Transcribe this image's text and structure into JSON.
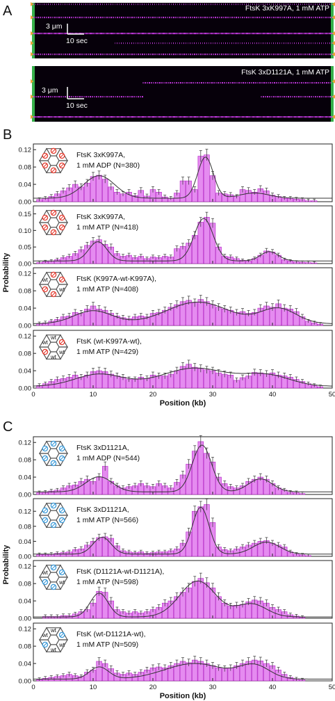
{
  "panel_labels": {
    "a": "A",
    "b": "B",
    "c": "C"
  },
  "kymographs": [
    {
      "label": "FtsK 3xK997A, 1 mM ATP",
      "scale_y": "3 μm",
      "scale_x": "10 sec"
    },
    {
      "label": "FtsK 3xD1121A, 1 mM ATP",
      "scale_y": "3 μm",
      "scale_x": "10 sec"
    }
  ],
  "colors": {
    "bar_fill": "#e58bf0",
    "bar_edge": "#b21fc4",
    "hex_ring_red": "#e53a2e",
    "hex_ring_blue": "#3a9ad9",
    "fit_line": "#333333",
    "kymo_bg": "#06000a",
    "kymo_track": "#c93ae6",
    "kymo_edge": "#36b04a"
  },
  "chart_data": [
    {
      "type": "bar",
      "group": "B",
      "legend_line1": "FtsK 3xK997A,",
      "legend_line2": "1 mM ADP (N=380)",
      "hexamer": [
        "m",
        "m",
        "m",
        "m",
        "m",
        "m"
      ],
      "mark": "red",
      "xlim": [
        0,
        50
      ],
      "ylim": [
        0,
        0.13
      ],
      "yticks": [
        0.0,
        0.04,
        0.08,
        0.12
      ],
      "ytick_labels": [
        "0.00",
        "0.04",
        "0.08",
        "0.12"
      ],
      "x_tick_labels_shown": false,
      "bin_width_kb": 1.05,
      "x": [
        1,
        2,
        3,
        4,
        5,
        6,
        7,
        8,
        9,
        10,
        11,
        12,
        13,
        14,
        15,
        16,
        17,
        18,
        19,
        20,
        21,
        22,
        23,
        24,
        25,
        26,
        27,
        28,
        29,
        30,
        31,
        32,
        33,
        34,
        35,
        36,
        37,
        38,
        39,
        40,
        41,
        42,
        43,
        44,
        45,
        46,
        47,
        48,
        49
      ],
      "values": [
        0.005,
        0.008,
        0.012,
        0.018,
        0.025,
        0.032,
        0.04,
        0.034,
        0.043,
        0.058,
        0.061,
        0.052,
        0.034,
        0.022,
        0.018,
        0.022,
        0.014,
        0.026,
        0.013,
        0.028,
        0.022,
        0.011,
        0.008,
        0.02,
        0.048,
        0.048,
        0.028,
        0.105,
        0.108,
        0.06,
        0.02,
        0.018,
        0.016,
        0.012,
        0.028,
        0.026,
        0.022,
        0.03,
        0.025,
        0.015,
        0.012,
        0.008,
        0.008,
        0.006,
        0.005,
        0.002,
        0.002,
        0,
        0
      ],
      "fit": {
        "baseline": 0.008,
        "peaks": [
          {
            "mu": 11,
            "sigma": 2.6,
            "amp": 0.052
          },
          {
            "mu": 28.8,
            "sigma": 1.3,
            "amp": 0.095
          },
          {
            "mu": 37,
            "sigma": 2.5,
            "amp": 0.012
          }
        ]
      }
    },
    {
      "type": "bar",
      "group": "B",
      "legend_line1": "FtsK 3xK997A,",
      "legend_line2": "1 mM ATP (N=418)",
      "hexamer": [
        "m",
        "m",
        "m",
        "m",
        "m",
        "m"
      ],
      "mark": "red",
      "xlim": [
        0,
        50
      ],
      "ylim": [
        0,
        0.17
      ],
      "yticks": [
        0.0,
        0.05,
        0.1,
        0.15
      ],
      "ytick_labels": [
        "0.00",
        "0.05",
        "0.10",
        "0.15"
      ],
      "x_tick_labels_shown": false,
      "bin_width_kb": 1.05,
      "x": [
        1,
        2,
        3,
        4,
        5,
        6,
        7,
        8,
        9,
        10,
        11,
        12,
        13,
        14,
        15,
        16,
        17,
        18,
        19,
        20,
        21,
        22,
        23,
        24,
        25,
        26,
        27,
        28,
        29,
        30,
        31,
        32,
        33,
        34,
        35,
        36,
        37,
        38,
        39,
        40,
        41,
        42,
        43,
        44,
        45,
        46,
        47,
        48,
        49
      ],
      "values": [
        0.003,
        0.006,
        0.008,
        0.012,
        0.018,
        0.022,
        0.03,
        0.042,
        0.055,
        0.068,
        0.072,
        0.058,
        0.05,
        0.03,
        0.022,
        0.025,
        0.018,
        0.022,
        0.015,
        0.02,
        0.018,
        0.022,
        0.02,
        0.045,
        0.052,
        0.062,
        0.085,
        0.125,
        0.14,
        0.122,
        0.05,
        0.022,
        0.02,
        0.015,
        0.01,
        0.008,
        0.015,
        0.025,
        0.038,
        0.035,
        0.025,
        0.012,
        0.008,
        0.005,
        0.004,
        0.003,
        0.002,
        0,
        0
      ],
      "fit": {
        "baseline": 0.008,
        "peaks": [
          {
            "mu": 10.8,
            "sigma": 1.5,
            "amp": 0.058
          },
          {
            "mu": 28.5,
            "sigma": 1.6,
            "amp": 0.128
          },
          {
            "mu": 39.5,
            "sigma": 1.5,
            "amp": 0.028
          }
        ]
      }
    },
    {
      "type": "bar",
      "group": "B",
      "legend_line1": "FtsK (K997A-wt-K997A),",
      "legend_line2": "1 mM ATP (N=408)",
      "hexamer": [
        "m",
        "m",
        "wt",
        "m",
        "m",
        "wt"
      ],
      "mark": "red",
      "xlim": [
        0,
        50
      ],
      "ylim": [
        0,
        0.13
      ],
      "yticks": [
        0.0,
        0.04,
        0.08,
        0.12
      ],
      "ytick_labels": [
        "0.00",
        "0.04",
        "0.08",
        "0.12"
      ],
      "x_tick_labels_shown": false,
      "bin_width_kb": 1.05,
      "x": [
        1,
        2,
        3,
        4,
        5,
        6,
        7,
        8,
        9,
        10,
        11,
        12,
        13,
        14,
        15,
        16,
        17,
        18,
        19,
        20,
        21,
        22,
        23,
        24,
        25,
        26,
        27,
        28,
        29,
        30,
        31,
        32,
        33,
        34,
        35,
        36,
        37,
        38,
        39,
        40,
        41,
        42,
        43,
        44,
        45,
        46,
        47,
        48,
        49
      ],
      "values": [
        0.004,
        0.006,
        0.01,
        0.014,
        0.02,
        0.022,
        0.03,
        0.028,
        0.038,
        0.045,
        0.038,
        0.035,
        0.028,
        0.022,
        0.018,
        0.016,
        0.02,
        0.022,
        0.02,
        0.028,
        0.03,
        0.035,
        0.042,
        0.048,
        0.055,
        0.058,
        0.052,
        0.06,
        0.055,
        0.048,
        0.042,
        0.038,
        0.035,
        0.03,
        0.032,
        0.028,
        0.03,
        0.04,
        0.045,
        0.042,
        0.05,
        0.04,
        0.038,
        0.032,
        0.02,
        0.01,
        0.006,
        0.003,
        0
      ],
      "fit": {
        "baseline": 0.004,
        "peaks": [
          {
            "mu": 10,
            "sigma": 3.2,
            "amp": 0.03
          },
          {
            "mu": 27.5,
            "sigma": 5.2,
            "amp": 0.05
          },
          {
            "mu": 41,
            "sigma": 3.0,
            "amp": 0.035
          }
        ]
      }
    },
    {
      "type": "bar",
      "group": "B",
      "legend_line1": "FtsK (wt-K997A-wt),",
      "legend_line2": "1 mM ATP (N=429)",
      "hexamer": [
        "wt",
        "m",
        "wt",
        "wt",
        "m",
        "wt"
      ],
      "mark": "red",
      "xlim": [
        0,
        50
      ],
      "ylim": [
        0,
        0.13
      ],
      "yticks": [
        0.0,
        0.04,
        0.08,
        0.12
      ],
      "ytick_labels": [
        "0.00",
        "0.04",
        "0.08",
        "0.12"
      ],
      "x_tick_labels_shown": true,
      "xticks": [
        0,
        10,
        20,
        30,
        40,
        50
      ],
      "xtick_labels": [
        "0",
        "10",
        "20",
        "30",
        "40",
        "50"
      ],
      "xlabel": "Position (kb)",
      "bin_width_kb": 1.05,
      "x": [
        1,
        2,
        3,
        4,
        5,
        6,
        7,
        8,
        9,
        10,
        11,
        12,
        13,
        14,
        15,
        16,
        17,
        18,
        19,
        20,
        21,
        22,
        23,
        24,
        25,
        26,
        27,
        28,
        29,
        30,
        31,
        32,
        33,
        34,
        35,
        36,
        37,
        38,
        39,
        40,
        41,
        42,
        43,
        44,
        45,
        46,
        47,
        48,
        49
      ],
      "values": [
        0.006,
        0.01,
        0.015,
        0.02,
        0.022,
        0.025,
        0.03,
        0.025,
        0.03,
        0.038,
        0.04,
        0.038,
        0.032,
        0.028,
        0.025,
        0.02,
        0.02,
        0.025,
        0.022,
        0.03,
        0.028,
        0.028,
        0.032,
        0.04,
        0.05,
        0.055,
        0.048,
        0.045,
        0.042,
        0.04,
        0.035,
        0.032,
        0.03,
        0.018,
        0.024,
        0.028,
        0.036,
        0.035,
        0.033,
        0.035,
        0.03,
        0.028,
        0.025,
        0.02,
        0.015,
        0.01,
        0.006,
        0.003,
        0
      ],
      "fit": {
        "baseline": 0.004,
        "peaks": [
          {
            "mu": 11,
            "sigma": 4.0,
            "amp": 0.028
          },
          {
            "mu": 27,
            "sigma": 5.5,
            "amp": 0.042
          },
          {
            "mu": 39,
            "sigma": 4.0,
            "amp": 0.025
          }
        ]
      }
    },
    {
      "type": "bar",
      "group": "C",
      "legend_line1": "FtsK 3xD1121A,",
      "legend_line2": "1 mM ADP (N=544)",
      "hexamer": [
        "m",
        "m",
        "m",
        "m",
        "m",
        "m"
      ],
      "mark": "blue",
      "xlim": [
        0,
        50
      ],
      "ylim": [
        0,
        0.13
      ],
      "yticks": [
        0.0,
        0.04,
        0.08,
        0.12
      ],
      "ytick_labels": [
        "0.00",
        "0.04",
        "0.08",
        "0.12"
      ],
      "x_tick_labels_shown": false,
      "bin_width_kb": 1.05,
      "x": [
        1,
        2,
        3,
        4,
        5,
        6,
        7,
        8,
        9,
        10,
        11,
        12,
        13,
        14,
        15,
        16,
        17,
        18,
        19,
        20,
        21,
        22,
        23,
        24,
        25,
        26,
        27,
        28,
        29,
        30,
        31,
        32,
        33,
        34,
        35,
        36,
        37,
        38,
        39,
        40,
        41,
        42,
        43,
        44,
        45,
        46,
        47,
        48,
        49
      ],
      "values": [
        0.004,
        0.005,
        0.008,
        0.01,
        0.015,
        0.02,
        0.022,
        0.03,
        0.035,
        0.03,
        0.04,
        0.065,
        0.03,
        0.02,
        0.015,
        0.018,
        0.02,
        0.025,
        0.02,
        0.018,
        0.025,
        0.02,
        0.015,
        0.028,
        0.045,
        0.07,
        0.1,
        0.122,
        0.095,
        0.075,
        0.04,
        0.025,
        0.018,
        0.015,
        0.02,
        0.03,
        0.035,
        0.04,
        0.035,
        0.025,
        0.015,
        0.01,
        0.005,
        0.004,
        0.002,
        0,
        0,
        0,
        0
      ],
      "fit": {
        "baseline": 0.006,
        "peaks": [
          {
            "mu": 11,
            "sigma": 2.2,
            "amp": 0.035
          },
          {
            "mu": 28.2,
            "sigma": 1.6,
            "amp": 0.108
          },
          {
            "mu": 38,
            "sigma": 2.0,
            "amp": 0.03
          }
        ]
      }
    },
    {
      "type": "bar",
      "group": "C",
      "legend_line1": "FtsK 3xD1121A,",
      "legend_line2": "1 mM ATP (N=566)",
      "hexamer": [
        "m",
        "m",
        "m",
        "m",
        "m",
        "m"
      ],
      "mark": "blue",
      "xlim": [
        0,
        50
      ],
      "ylim": [
        0,
        0.15
      ],
      "yticks": [
        0.0,
        0.04,
        0.08,
        0.12
      ],
      "ytick_labels": [
        "0.00",
        "0.04",
        "0.08",
        "0.12"
      ],
      "x_tick_labels_shown": false,
      "bin_width_kb": 1.05,
      "x": [
        1,
        2,
        3,
        4,
        5,
        6,
        7,
        8,
        9,
        10,
        11,
        12,
        13,
        14,
        15,
        16,
        17,
        18,
        19,
        20,
        21,
        22,
        23,
        24,
        25,
        26,
        27,
        28,
        29,
        30,
        31,
        32,
        33,
        34,
        35,
        36,
        37,
        38,
        39,
        40,
        41,
        42,
        43,
        44,
        45,
        46,
        47,
        48,
        49
      ],
      "values": [
        0.005,
        0.005,
        0.006,
        0.008,
        0.01,
        0.012,
        0.018,
        0.02,
        0.03,
        0.04,
        0.05,
        0.052,
        0.048,
        0.028,
        0.015,
        0.012,
        0.01,
        0.012,
        0.008,
        0.01,
        0.012,
        0.012,
        0.015,
        0.02,
        0.035,
        0.065,
        0.12,
        0.132,
        0.138,
        0.09,
        0.025,
        0.018,
        0.015,
        0.02,
        0.025,
        0.03,
        0.035,
        0.04,
        0.042,
        0.035,
        0.03,
        0.025,
        0.012,
        0.006,
        0.004,
        0.002,
        0,
        0,
        0
      ],
      "fit": {
        "baseline": 0.006,
        "peaks": [
          {
            "mu": 11.5,
            "sigma": 1.5,
            "amp": 0.045
          },
          {
            "mu": 28,
            "sigma": 1.4,
            "amp": 0.125
          },
          {
            "mu": 39,
            "sigma": 2.2,
            "amp": 0.032
          }
        ]
      }
    },
    {
      "type": "bar",
      "group": "C",
      "legend_line1": "FtsK (D1121A-wt-D1121A),",
      "legend_line2": "1 mM ATP (N=598)",
      "hexamer": [
        "m",
        "m",
        "wt",
        "m",
        "m",
        "wt"
      ],
      "mark": "blue",
      "xlim": [
        0,
        50
      ],
      "ylim": [
        0,
        0.13
      ],
      "yticks": [
        0.0,
        0.04,
        0.08,
        0.12
      ],
      "ytick_labels": [
        "0.00",
        "0.04",
        "0.08",
        "0.12"
      ],
      "x_tick_labels_shown": false,
      "bin_width_kb": 1.05,
      "x": [
        1,
        2,
        3,
        4,
        5,
        6,
        7,
        8,
        9,
        10,
        11,
        12,
        13,
        14,
        15,
        16,
        17,
        18,
        19,
        20,
        21,
        22,
        23,
        24,
        25,
        26,
        27,
        28,
        29,
        30,
        31,
        32,
        33,
        34,
        35,
        36,
        37,
        38,
        39,
        40,
        41,
        42,
        43,
        44,
        45,
        46,
        47,
        48,
        49
      ],
      "values": [
        0,
        0.004,
        0.004,
        0.004,
        0.006,
        0.006,
        0.01,
        0.015,
        0.02,
        0.035,
        0.062,
        0.06,
        0.04,
        0.02,
        0.015,
        0.012,
        0.015,
        0.012,
        0.015,
        0.02,
        0.025,
        0.035,
        0.04,
        0.05,
        0.06,
        0.07,
        0.085,
        0.092,
        0.082,
        0.07,
        0.05,
        0.035,
        0.028,
        0.03,
        0.032,
        0.038,
        0.042,
        0.04,
        0.035,
        0.025,
        0.02,
        0.015,
        0.008,
        0.005,
        0.002,
        0,
        0,
        0,
        0
      ],
      "fit": {
        "baseline": 0.003,
        "peaks": [
          {
            "mu": 11,
            "sigma": 1.5,
            "amp": 0.055
          },
          {
            "mu": 27.5,
            "sigma": 3.0,
            "amp": 0.083
          },
          {
            "mu": 36.5,
            "sigma": 2.5,
            "amp": 0.03
          }
        ]
      }
    },
    {
      "type": "bar",
      "group": "C",
      "legend_line1": "FtsK (wt-D1121A-wt),",
      "legend_line2": "1 mM ATP (N=509)",
      "hexamer": [
        "wt",
        "m",
        "wt",
        "wt",
        "m",
        "wt"
      ],
      "mark": "blue",
      "xlim": [
        0,
        50
      ],
      "ylim": [
        0,
        0.13
      ],
      "yticks": [
        0.0,
        0.04,
        0.08,
        0.12
      ],
      "ytick_labels": [
        "0.00",
        "0.04",
        "0.08",
        "0.12"
      ],
      "x_tick_labels_shown": true,
      "xticks": [
        0,
        10,
        20,
        30,
        40,
        50
      ],
      "xtick_labels": [
        "0",
        "10",
        "20",
        "30",
        "40",
        "50"
      ],
      "xlabel": "Position (kb)",
      "bin_width_kb": 1.05,
      "x": [
        1,
        2,
        3,
        4,
        5,
        6,
        7,
        8,
        9,
        10,
        11,
        12,
        13,
        14,
        15,
        16,
        17,
        18,
        19,
        20,
        21,
        22,
        23,
        24,
        25,
        26,
        27,
        28,
        29,
        30,
        31,
        32,
        33,
        34,
        35,
        36,
        37,
        38,
        39,
        40,
        41,
        42,
        43,
        44,
        45,
        46,
        47,
        48,
        49
      ],
      "values": [
        0.003,
        0.006,
        0.008,
        0.01,
        0.012,
        0.015,
        0.012,
        0.01,
        0.02,
        0.025,
        0.045,
        0.04,
        0.028,
        0.018,
        0.015,
        0.018,
        0.015,
        0.02,
        0.025,
        0.03,
        0.032,
        0.03,
        0.035,
        0.04,
        0.045,
        0.042,
        0.048,
        0.045,
        0.04,
        0.035,
        0.03,
        0.028,
        0.03,
        0.035,
        0.04,
        0.045,
        0.048,
        0.046,
        0.04,
        0.035,
        0.025,
        0.015,
        0.008,
        0.004,
        0.002,
        0,
        0,
        0,
        0
      ],
      "fit": {
        "baseline": 0.004,
        "peaks": [
          {
            "mu": 11,
            "sigma": 1.6,
            "amp": 0.028
          },
          {
            "mu": 27,
            "sigma": 5.0,
            "amp": 0.036
          },
          {
            "mu": 37,
            "sigma": 2.5,
            "amp": 0.03
          }
        ]
      }
    }
  ],
  "group_ylabel": {
    "B": "Probability",
    "C": "Probability"
  }
}
